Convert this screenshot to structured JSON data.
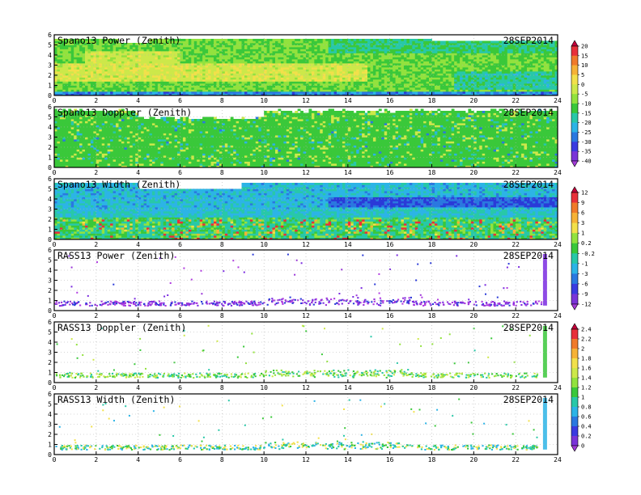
{
  "chart_data": [
    {
      "type": "heatmap",
      "title": "Spano13 Power (Zenith)",
      "date": "28SEP2014",
      "x_ticks": [
        "0",
        "2",
        "4",
        "6",
        "8",
        "10",
        "12",
        "14",
        "16",
        "18",
        "20",
        "22",
        "24"
      ],
      "y_ticks": [
        "0",
        "1",
        "2",
        "3",
        "4",
        "5",
        "6"
      ],
      "xlim": [
        0,
        24
      ],
      "ylim": [
        0,
        6
      ],
      "colorbar": "A",
      "pattern": "power"
    },
    {
      "type": "heatmap",
      "title": "Spano13 Doppler (Zenith)",
      "date": "28SEP2014",
      "x_ticks": [
        "0",
        "2",
        "4",
        "6",
        "8",
        "10",
        "12",
        "14",
        "16",
        "18",
        "20",
        "22",
        "24"
      ],
      "y_ticks": [
        "0",
        "1",
        "2",
        "3",
        "4",
        "5",
        "6"
      ],
      "xlim": [
        0,
        24
      ],
      "ylim": [
        0,
        6
      ],
      "colorbar": null,
      "pattern": "doppler"
    },
    {
      "type": "heatmap",
      "title": "Spano13 Width (Zenith)",
      "date": "28SEP2014",
      "x_ticks": [
        "0",
        "2",
        "4",
        "6",
        "8",
        "10",
        "12",
        "14",
        "16",
        "18",
        "20",
        "22",
        "24"
      ],
      "y_ticks": [
        "0",
        "1",
        "2",
        "3",
        "4",
        "5",
        "6"
      ],
      "xlim": [
        0,
        24
      ],
      "ylim": [
        0,
        6
      ],
      "colorbar": "B",
      "pattern": "width"
    },
    {
      "type": "heatmap",
      "title": "RASS13 Power (Zenith)",
      "date": "28SEP2014",
      "x_ticks": [
        "0",
        "2",
        "4",
        "6",
        "8",
        "10",
        "12",
        "14",
        "16",
        "18",
        "20",
        "22",
        "24"
      ],
      "y_ticks": [
        "0",
        "1",
        "2",
        "3",
        "4",
        "5",
        "6"
      ],
      "xlim": [
        0,
        24
      ],
      "ylim": [
        0,
        6
      ],
      "colorbar": null,
      "pattern": "rass_power"
    },
    {
      "type": "heatmap",
      "title": "RASS13 Doppler (Zenith)",
      "date": "28SEP2014",
      "x_ticks": [
        "0",
        "2",
        "4",
        "6",
        "8",
        "10",
        "12",
        "14",
        "16",
        "18",
        "20",
        "22",
        "24"
      ],
      "y_ticks": [
        "0",
        "1",
        "2",
        "3",
        "4",
        "5",
        "6"
      ],
      "xlim": [
        0,
        24
      ],
      "ylim": [
        0,
        6
      ],
      "colorbar": "C",
      "pattern": "rass_doppler"
    },
    {
      "type": "heatmap",
      "title": "RASS13 Width (Zenith)",
      "date": "28SEP2014",
      "x_ticks": [
        "0",
        "2",
        "4",
        "6",
        "8",
        "10",
        "12",
        "14",
        "16",
        "18",
        "20",
        "22",
        "24"
      ],
      "y_ticks": [
        "0",
        "1",
        "2",
        "3",
        "4",
        "5",
        "6"
      ],
      "xlim": [
        0,
        24
      ],
      "ylim": [
        0,
        6
      ],
      "colorbar": null,
      "pattern": "rass_width"
    }
  ],
  "colorbars": {
    "A": {
      "labels": [
        "20",
        "15",
        "10",
        "5",
        "0",
        "-5",
        "-10",
        "-15",
        "-20",
        "-25",
        "-30",
        "-35",
        "-40"
      ],
      "colors": [
        "#c4003a",
        "#e8303a",
        "#f07a2a",
        "#f6b236",
        "#f2e04a",
        "#cde84a",
        "#92e23e",
        "#3ac83a",
        "#28c8a8",
        "#2cb4e6",
        "#2a78e0",
        "#3a3ae0",
        "#7a34d8",
        "#a23ad8"
      ]
    },
    "B": {
      "labels": [
        "12",
        "9",
        "6",
        "3",
        "1",
        "0.2",
        "-0.2",
        "-1",
        "-3",
        "-6",
        "-9",
        "-12"
      ],
      "colors": [
        "#c4003a",
        "#e8303a",
        "#f07a2a",
        "#f6b236",
        "#f2e04a",
        "#92e23e",
        "#3ac83a",
        "#28c8a8",
        "#2cb4e6",
        "#2a78e0",
        "#3a3ae0",
        "#7a34d8",
        "#a23ad8"
      ]
    },
    "C": {
      "labels": [
        "2.4",
        "2.2",
        "2",
        "1.8",
        "1.6",
        "1.4",
        "1.2",
        "1",
        "0.8",
        "0.6",
        "0.4",
        "0.2",
        "0"
      ],
      "colors": [
        "#c4003a",
        "#e8303a",
        "#f07a2a",
        "#f6b236",
        "#f2e04a",
        "#cde84a",
        "#92e23e",
        "#3ac83a",
        "#28c8a8",
        "#2cb4e6",
        "#2a78e0",
        "#3a3ae0",
        "#7a34d8",
        "#a23ad8"
      ]
    }
  }
}
